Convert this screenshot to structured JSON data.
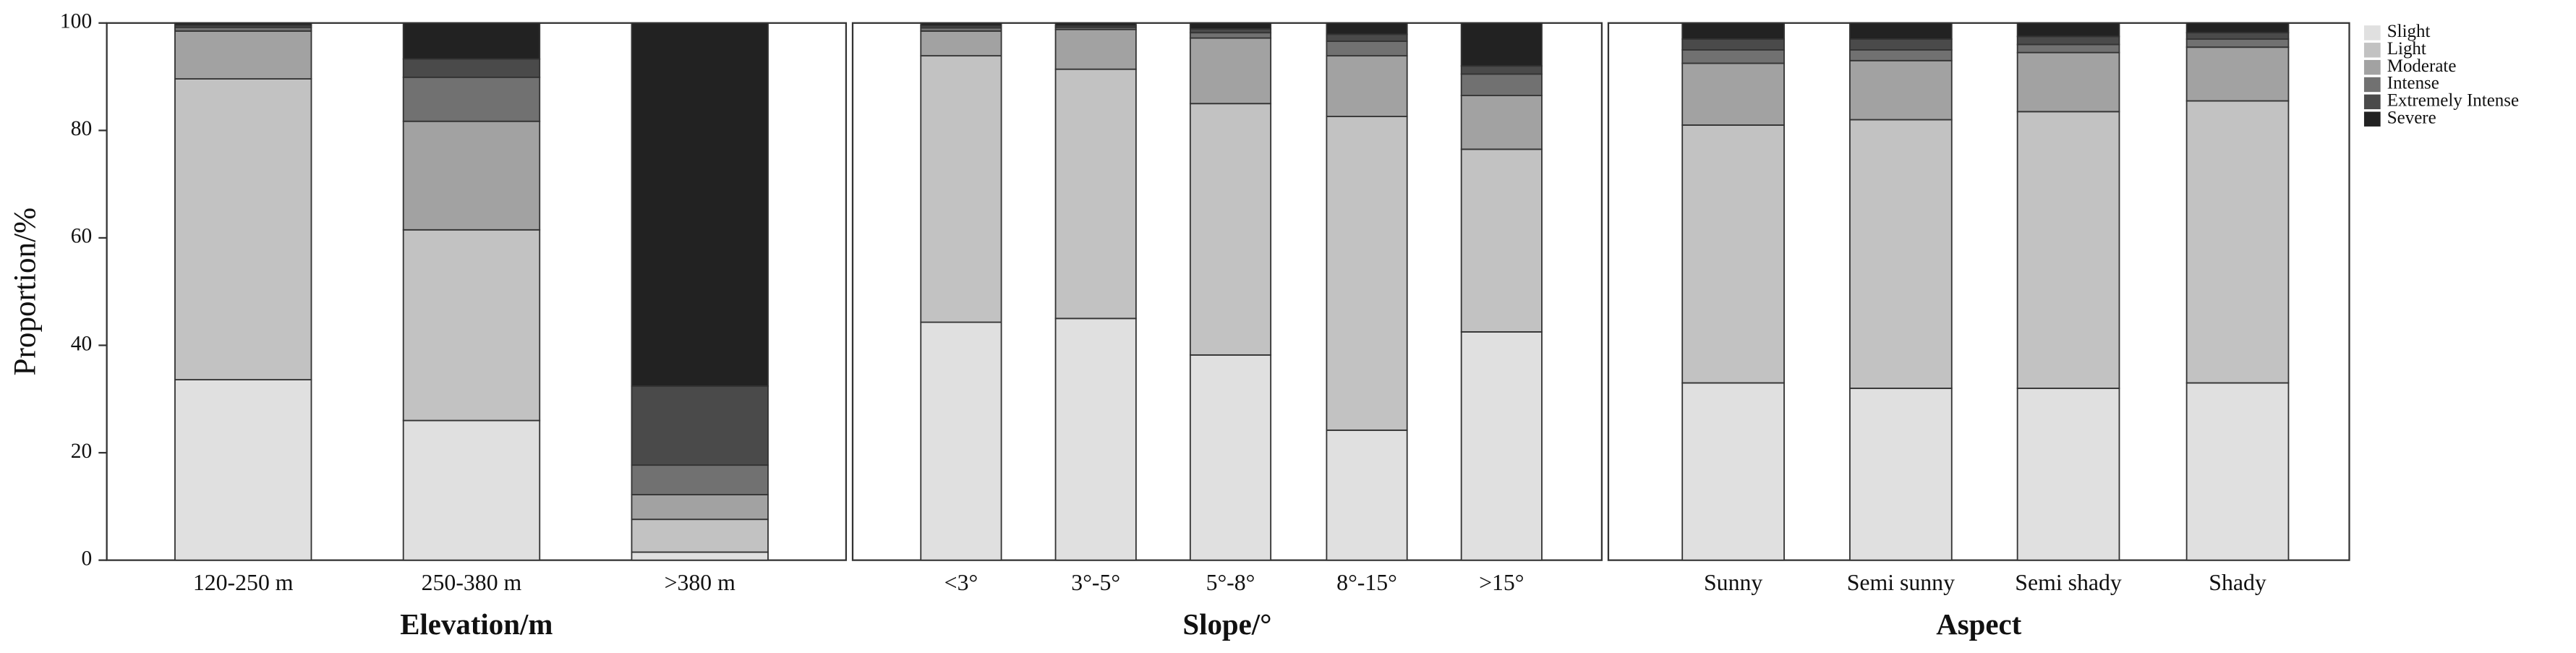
{
  "legend": [
    {
      "name": "Slight",
      "color": "#e0e0e0"
    },
    {
      "name": "Light",
      "color": "#c2c2c2"
    },
    {
      "name": "Moderate",
      "color": "#a2a2a2"
    },
    {
      "name": "Intense",
      "color": "#717171"
    },
    {
      "name": "Extremely Intense",
      "color": "#4a4a4a"
    },
    {
      "name": "Severe",
      "color": "#222222"
    }
  ],
  "chart_data": [
    {
      "type": "stacked_bar",
      "x_label": "Elevation/m",
      "y_label": "Proportion/%",
      "categories": [
        "120-250 m",
        "250-380 m",
        ">380 m"
      ],
      "ylim": [
        0,
        100
      ],
      "yticks": [
        0,
        20,
        40,
        60,
        80,
        100
      ],
      "series": [
        {
          "values": [
            33.6,
            26.0,
            1.5
          ]
        },
        {
          "values": [
            56.0,
            35.5,
            6.1
          ]
        },
        {
          "values": [
            8.9,
            20.2,
            4.6
          ]
        },
        {
          "values": [
            0.7,
            8.2,
            5.5
          ]
        },
        {
          "values": [
            0.4,
            3.4,
            14.7
          ]
        },
        {
          "values": [
            0.4,
            6.7,
            67.6
          ]
        }
      ]
    },
    {
      "type": "stacked_bar",
      "x_label": "Slope/°",
      "categories": [
        "<3°",
        "3°-5°",
        "5°-8°",
        "8°-15°",
        ">15°"
      ],
      "ylim": [
        0,
        100
      ],
      "series": [
        {
          "values": [
            44.3,
            45.0,
            38.2,
            24.2,
            42.5
          ]
        },
        {
          "values": [
            49.6,
            46.4,
            46.8,
            58.4,
            34.0
          ]
        },
        {
          "values": [
            4.6,
            7.4,
            12.2,
            11.3,
            10.0
          ]
        },
        {
          "values": [
            0.6,
            0.4,
            1.0,
            2.7,
            4.0
          ]
        },
        {
          "values": [
            0.4,
            0.3,
            0.7,
            1.3,
            1.5
          ]
        },
        {
          "values": [
            0.5,
            0.5,
            1.1,
            2.1,
            8.0
          ]
        }
      ]
    },
    {
      "type": "stacked_bar",
      "x_label": "Aspect",
      "categories": [
        "Sunny",
        "Semi sunny",
        "Semi shady",
        "Shady"
      ],
      "ylim": [
        0,
        100
      ],
      "series": [
        {
          "values": [
            33.0,
            32.0,
            32.0,
            33.0
          ]
        },
        {
          "values": [
            48.0,
            50.0,
            51.5,
            52.5
          ]
        },
        {
          "values": [
            11.5,
            11.0,
            11.0,
            10.0
          ]
        },
        {
          "values": [
            2.5,
            2.0,
            1.5,
            1.5
          ]
        },
        {
          "values": [
            2.0,
            2.0,
            1.5,
            1.2
          ]
        },
        {
          "values": [
            3.0,
            3.0,
            2.5,
            1.8
          ]
        }
      ]
    }
  ]
}
